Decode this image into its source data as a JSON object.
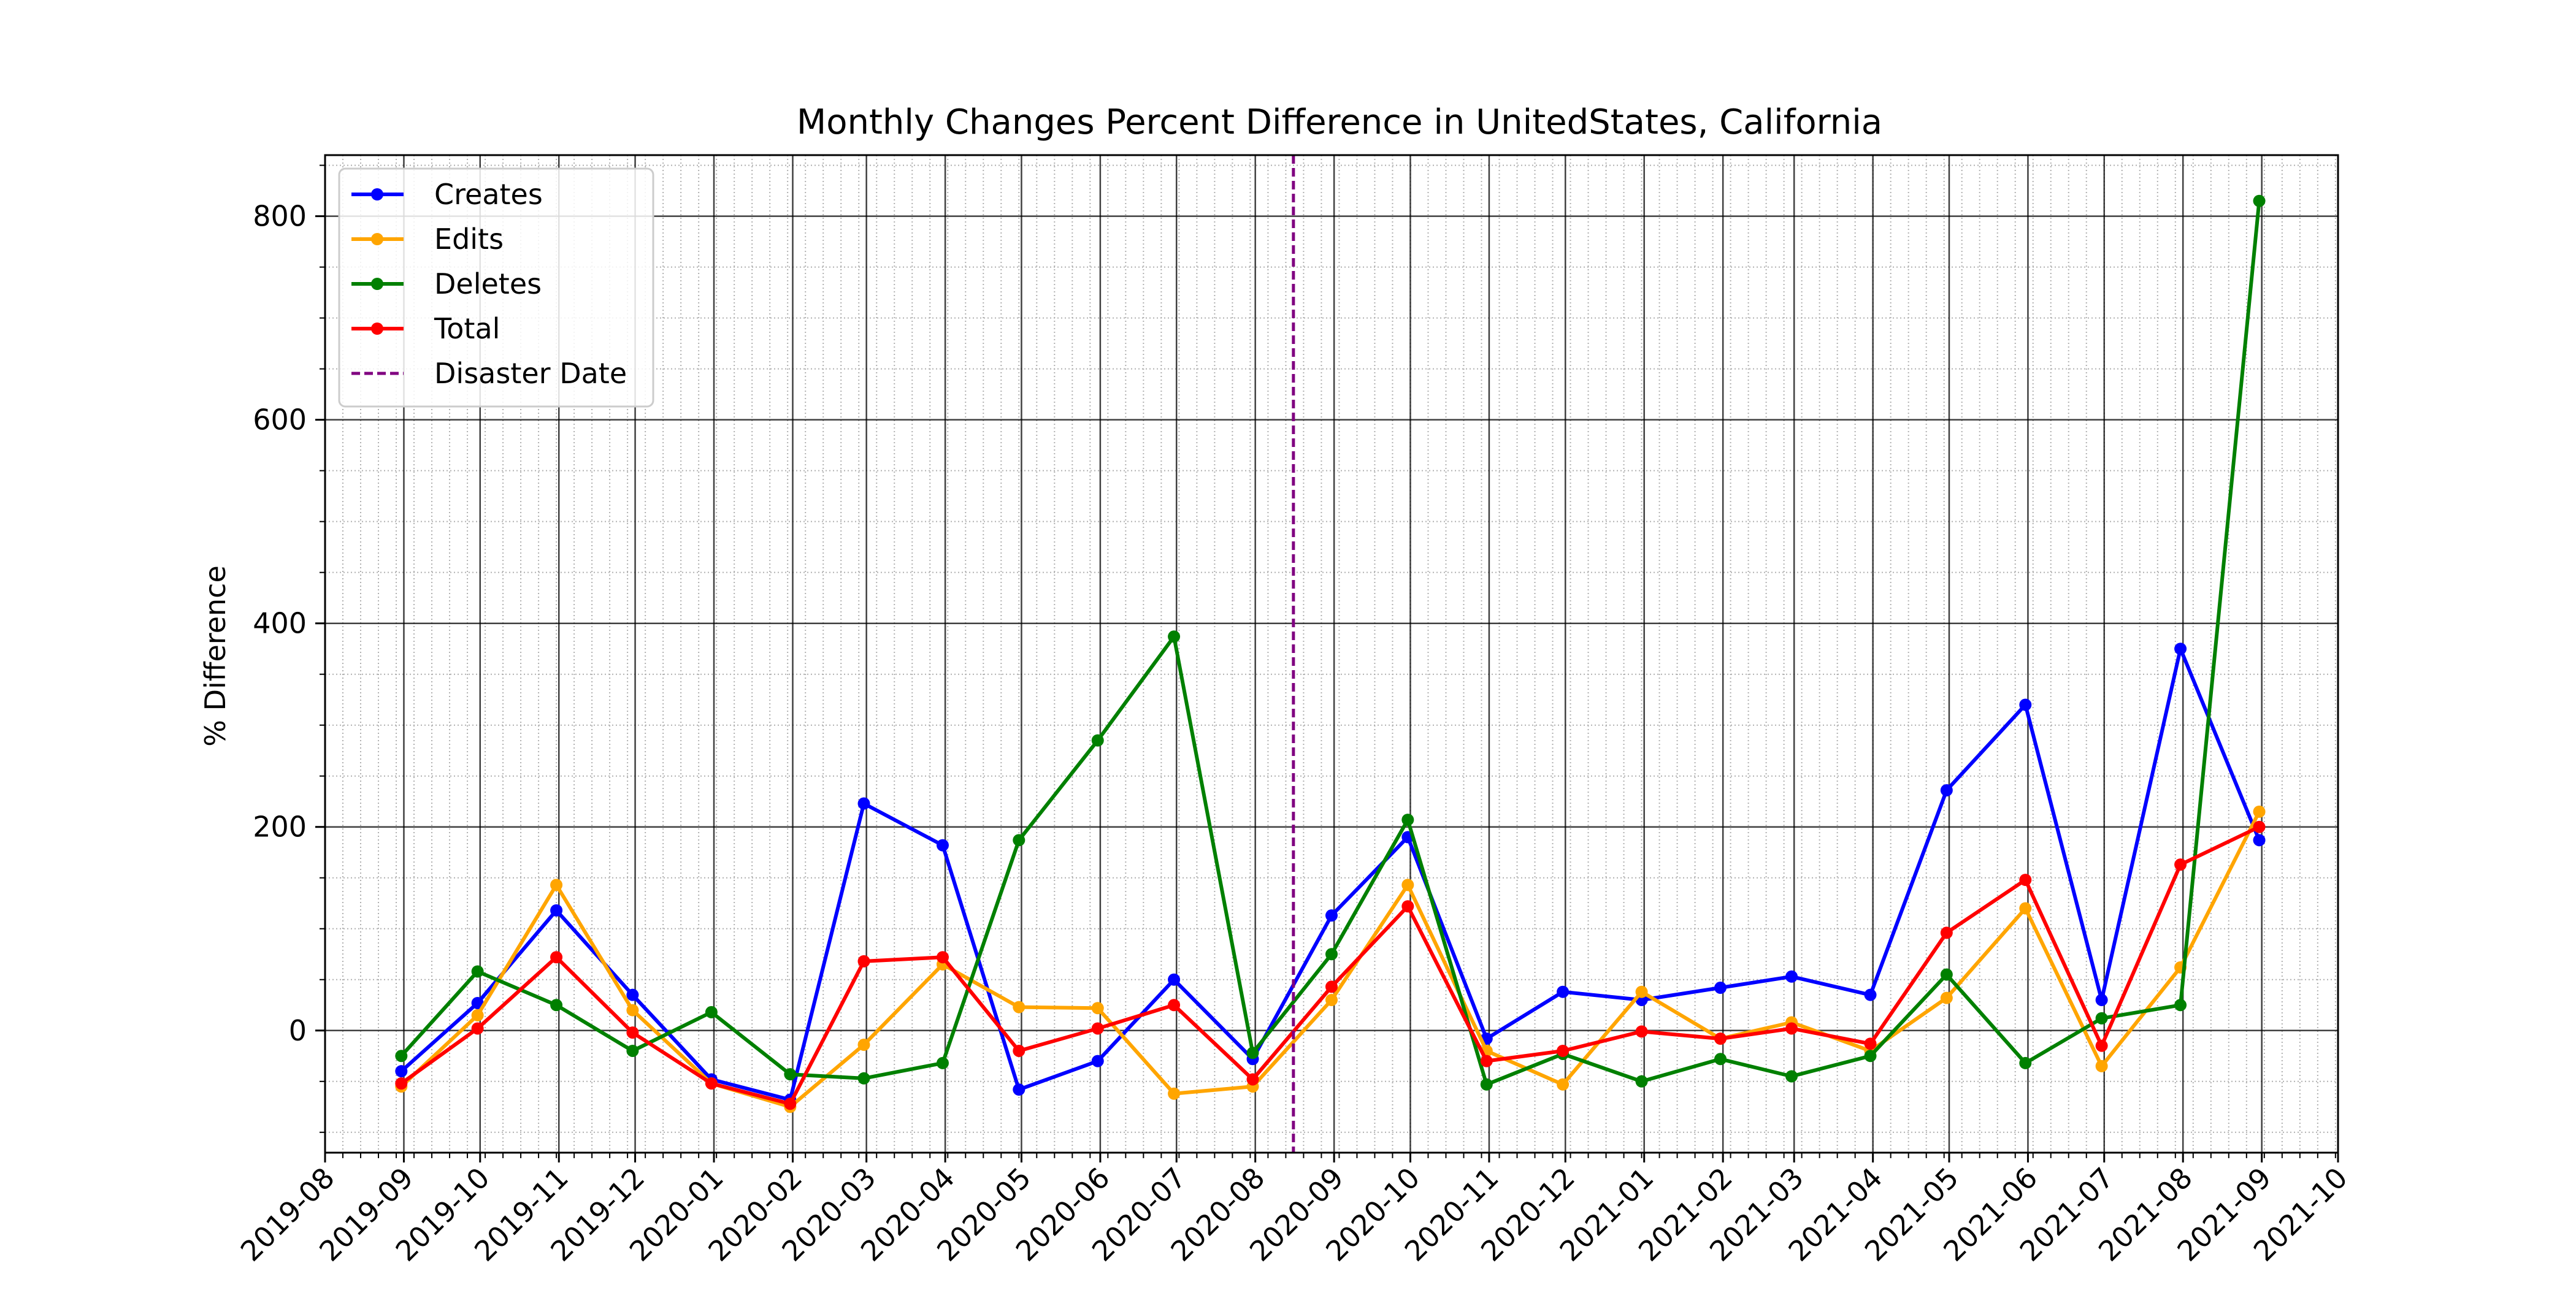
{
  "chart_data": {
    "type": "line",
    "title": "Monthly Changes Percent Difference in UnitedStates, California",
    "xlabel": "",
    "ylabel": "% Difference",
    "x_axis": {
      "type": "date",
      "tick_labels": [
        "2019-08",
        "2019-09",
        "2019-10",
        "2019-11",
        "2019-12",
        "2020-01",
        "2020-02",
        "2020-03",
        "2020-04",
        "2020-05",
        "2020-06",
        "2020-07",
        "2020-08",
        "2020-09",
        "2020-10",
        "2020-11",
        "2020-12",
        "2021-01",
        "2021-02",
        "2021-03",
        "2021-04",
        "2021-05",
        "2021-06",
        "2021-07",
        "2021-08",
        "2021-09",
        "2021-10"
      ],
      "range": [
        "2019-08-01",
        "2021-10-01"
      ]
    },
    "y_axis": {
      "ticks": [
        0,
        200,
        400,
        600,
        800
      ],
      "minor_step": 50,
      "range": [
        -120,
        860
      ]
    },
    "grid": true,
    "legend_position": "top-left",
    "x": [
      "2019-08-31",
      "2019-09-30",
      "2019-10-31",
      "2019-11-30",
      "2019-12-31",
      "2020-01-31",
      "2020-02-29",
      "2020-03-31",
      "2020-04-30",
      "2020-05-31",
      "2020-06-30",
      "2020-07-31",
      "2020-08-31",
      "2020-09-30",
      "2020-10-31",
      "2020-11-30",
      "2020-12-31",
      "2021-01-31",
      "2021-02-28",
      "2021-03-31",
      "2021-04-30",
      "2021-05-31",
      "2021-06-30",
      "2021-07-31",
      "2021-08-31"
    ],
    "series": [
      {
        "name": "Creates",
        "color": "#0000ff",
        "values": [
          -40,
          27,
          118,
          35,
          -48,
          -68,
          223,
          182,
          -58,
          -30,
          50,
          -28,
          113,
          190,
          -8,
          38,
          30,
          42,
          53,
          35,
          236,
          320,
          30,
          375,
          187
        ]
      },
      {
        "name": "Edits",
        "color": "#ffa500",
        "values": [
          -55,
          15,
          143,
          20,
          -52,
          -75,
          -14,
          65,
          23,
          22,
          -62,
          -55,
          30,
          143,
          -20,
          -53,
          38,
          -8,
          8,
          -20,
          32,
          120,
          -35,
          62,
          215
        ]
      },
      {
        "name": "Deletes",
        "color": "#008000",
        "values": [
          -25,
          58,
          25,
          -20,
          18,
          -43,
          -47,
          -32,
          187,
          285,
          387,
          -22,
          75,
          207,
          -53,
          -23,
          -50,
          -28,
          -45,
          -25,
          55,
          -32,
          12,
          25,
          815
        ]
      },
      {
        "name": "Total",
        "color": "#ff0000",
        "values": [
          -52,
          2,
          72,
          -2,
          -52,
          -72,
          68,
          72,
          -20,
          2,
          25,
          -48,
          43,
          122,
          -30,
          -20,
          -1,
          -8,
          2,
          -13,
          96,
          148,
          -15,
          163,
          200
        ]
      }
    ],
    "disaster_date": {
      "name": "Disaster Date",
      "date": "2020-08-16",
      "color": "#800080"
    }
  }
}
